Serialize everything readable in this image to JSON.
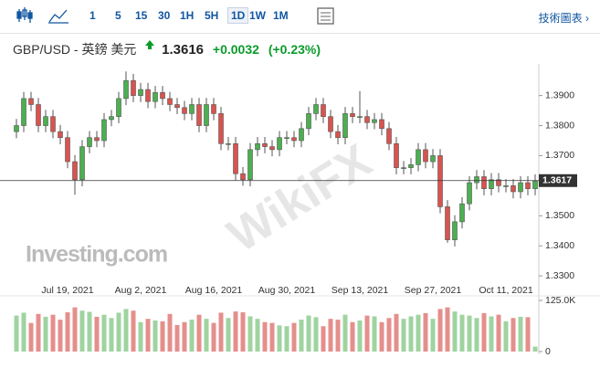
{
  "toolbar": {
    "intervals": [
      "1",
      "5",
      "15",
      "30",
      "1H",
      "5H",
      "1D",
      "1W",
      "1M"
    ],
    "selected": 6,
    "technical": "技術圖表 ›"
  },
  "header": {
    "instrument": "GBP/USD - 英鎊 美元",
    "price": "1.3616",
    "change": "+0.0032",
    "change_percent": "(+0.23%)"
  },
  "watermarks": [
    "Investing.com",
    "WikiFX"
  ],
  "chart_data": {
    "type": "candlestick",
    "categories": [
      null,
      null,
      null,
      null,
      null,
      null,
      null,
      "Jul 19, 2021",
      null,
      null,
      null,
      null,
      null,
      null,
      null,
      null,
      null,
      "Aug 2, 2021",
      null,
      null,
      null,
      null,
      null,
      null,
      null,
      null,
      null,
      "Aug 16, 2021",
      null,
      null,
      null,
      null,
      null,
      null,
      null,
      null,
      null,
      "Aug 30, 2021",
      null,
      null,
      null,
      null,
      null,
      null,
      null,
      null,
      null,
      "Sep 13, 2021",
      null,
      null,
      null,
      null,
      null,
      null,
      null,
      null,
      null,
      "Sep 27, 2021",
      null,
      null,
      null,
      null,
      null,
      null,
      null,
      null,
      null,
      "Oct 11, 2021",
      null,
      null,
      null,
      null
    ],
    "open": [
      1.378,
      1.38,
      1.389,
      1.387,
      1.38,
      1.383,
      1.378,
      1.376,
      1.368,
      1.362,
      1.373,
      1.376,
      1.375,
      1.382,
      1.383,
      1.389,
      1.395,
      1.39,
      1.392,
      1.388,
      1.391,
      1.389,
      1.387,
      1.386,
      1.384,
      1.387,
      1.38,
      1.387,
      1.384,
      1.374,
      1.374,
      1.364,
      1.362,
      1.372,
      1.374,
      1.373,
      1.372,
      1.376,
      1.376,
      1.375,
      1.379,
      1.384,
      1.387,
      1.383,
      1.378,
      1.376,
      1.384,
      1.383,
      1.383,
      1.381,
      1.382,
      1.379,
      1.374,
      1.366,
      1.366,
      1.367,
      1.372,
      1.368,
      1.37,
      1.353,
      1.342,
      1.348,
      1.354,
      1.361,
      1.363,
      1.359,
      1.362,
      1.36,
      1.36,
      1.358,
      1.361,
      1.359
    ],
    "high": [
      1.3822,
      1.3912,
      1.3912,
      1.3892,
      1.3852,
      1.3852,
      1.3802,
      1.3782,
      1.3702,
      1.3752,
      1.3782,
      1.3782,
      1.3842,
      1.3852,
      1.3912,
      1.398,
      1.3972,
      1.3942,
      1.3942,
      1.3932,
      1.3932,
      1.3912,
      1.3892,
      1.3882,
      1.3892,
      1.3892,
      1.3892,
      1.3892,
      1.3862,
      1.3762,
      1.3762,
      1.3662,
      1.3742,
      1.3762,
      1.3762,
      1.3752,
      1.3782,
      1.3782,
      1.3782,
      1.3812,
      1.3862,
      1.3892,
      1.3892,
      1.3852,
      1.3802,
      1.3862,
      1.3862,
      1.3915,
      1.3852,
      1.3842,
      1.3842,
      1.3812,
      1.3762,
      1.3682,
      1.3692,
      1.3742,
      1.3742,
      1.3722,
      1.3722,
      1.3552,
      1.3502,
      1.3562,
      1.3632,
      1.3652,
      1.3652,
      1.3642,
      1.3642,
      1.3622,
      1.3622,
      1.3632,
      1.3632,
      1.3638
    ],
    "low": [
      1.3758,
      1.3778,
      1.3848,
      1.3778,
      1.3778,
      1.3758,
      1.3738,
      1.3658,
      1.357,
      1.3598,
      1.3708,
      1.3728,
      1.3728,
      1.3798,
      1.3808,
      1.3868,
      1.3878,
      1.3878,
      1.3858,
      1.3858,
      1.3868,
      1.3848,
      1.3838,
      1.3818,
      1.3818,
      1.3778,
      1.3778,
      1.3818,
      1.3718,
      1.3718,
      1.3618,
      1.36,
      1.3598,
      1.3698,
      1.3708,
      1.3698,
      1.3698,
      1.3738,
      1.3728,
      1.3728,
      1.3768,
      1.3818,
      1.3808,
      1.3758,
      1.3738,
      1.3738,
      1.3808,
      1.3808,
      1.3788,
      1.3788,
      1.3768,
      1.3718,
      1.3638,
      1.3638,
      1.3638,
      1.3648,
      1.3658,
      1.3658,
      1.3508,
      1.341,
      1.3398,
      1.3458,
      1.3518,
      1.3588,
      1.3568,
      1.3568,
      1.3578,
      1.3578,
      1.3558,
      1.3558,
      1.3568,
      1.3568
    ],
    "close": [
      1.38,
      1.389,
      1.387,
      1.38,
      1.383,
      1.378,
      1.376,
      1.368,
      1.362,
      1.373,
      1.376,
      1.375,
      1.382,
      1.383,
      1.389,
      1.395,
      1.39,
      1.392,
      1.388,
      1.391,
      1.389,
      1.387,
      1.386,
      1.384,
      1.387,
      1.38,
      1.387,
      1.384,
      1.374,
      1.374,
      1.364,
      1.362,
      1.372,
      1.374,
      1.373,
      1.372,
      1.376,
      1.376,
      1.375,
      1.379,
      1.384,
      1.387,
      1.383,
      1.378,
      1.376,
      1.384,
      1.383,
      1.383,
      1.381,
      1.382,
      1.379,
      1.374,
      1.366,
      1.366,
      1.367,
      1.372,
      1.368,
      1.37,
      1.353,
      1.342,
      1.348,
      1.354,
      1.361,
      1.363,
      1.359,
      1.362,
      1.36,
      1.36,
      1.358,
      1.361,
      1.359,
      1.3616
    ],
    "volume": [
      88000,
      95000,
      70000,
      92000,
      85000,
      90000,
      78000,
      96000,
      108000,
      100000,
      97000,
      85000,
      90000,
      82000,
      95000,
      104000,
      100000,
      72000,
      80000,
      76000,
      74000,
      92000,
      65000,
      72000,
      78000,
      90000,
      80000,
      70000,
      95000,
      82000,
      98000,
      96000,
      86000,
      80000,
      72000,
      70000,
      64000,
      62000,
      70000,
      78000,
      88000,
      84000,
      62000,
      80000,
      78000,
      90000,
      72000,
      76000,
      88000,
      86000,
      72000,
      82000,
      92000,
      80000,
      86000,
      90000,
      94000,
      80000,
      104000,
      108000,
      98000,
      90000,
      88000,
      82000,
      94000,
      86000,
      90000,
      74000,
      82000,
      85000,
      84000,
      12000
    ],
    "ylim": [
      1.327,
      1.399
    ],
    "yticks": [
      {
        "value": 1.39,
        "label": "1.3900"
      },
      {
        "value": 1.38,
        "label": "1.3800"
      },
      {
        "value": 1.37,
        "label": "1.3700"
      },
      {
        "value": 1.35,
        "label": "1.3500"
      },
      {
        "value": 1.34,
        "label": "1.3400"
      },
      {
        "value": 1.33,
        "label": "1.3300"
      }
    ],
    "last_price": 1.3617,
    "volume_ylim": [
      0,
      125000
    ],
    "volume_yticks": [
      {
        "value": 125000,
        "label": "125.0K"
      },
      0
    ],
    "up_color": "#4caf50",
    "down_color": "#d9534f",
    "volume_up_color": "#9fd3a0",
    "volume_down_color": "#e48f8c"
  }
}
